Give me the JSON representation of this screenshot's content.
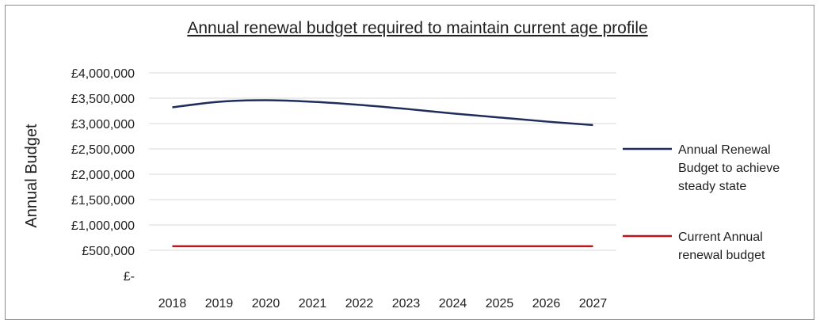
{
  "chart_data": {
    "type": "line",
    "title": "Annual renewal budget required to maintain current age profile",
    "xlabel": "",
    "ylabel": "Annual Budget",
    "x": [
      "2018",
      "2019",
      "2020",
      "2021",
      "2022",
      "2023",
      "2024",
      "2025",
      "2026",
      "2027"
    ],
    "ylim": [
      0,
      4000000
    ],
    "yticks": [
      0,
      500000,
      1000000,
      1500000,
      2000000,
      2500000,
      3000000,
      3500000,
      4000000
    ],
    "ytick_labels": [
      "£-",
      "£500,000",
      "£1,000,000",
      "£1,500,000",
      "£2,000,000",
      "£2,500,000",
      "£3,000,000",
      "£3,500,000",
      "£4,000,000"
    ],
    "grid": true,
    "legend_position": "right",
    "series": [
      {
        "name": "Annual Renewal Budget to achieve steady state",
        "legend_lines": [
          "Annual Renewal",
          "Budget to achieve",
          "steady state"
        ],
        "color": "#1f2d5c",
        "values": [
          3320000,
          3430000,
          3460000,
          3430000,
          3370000,
          3290000,
          3200000,
          3120000,
          3040000,
          2970000
        ]
      },
      {
        "name": "Current Annual renewal budget",
        "legend_lines": [
          "Current Annual",
          "renewal budget"
        ],
        "color": "#c0141b",
        "values": [
          580000,
          580000,
          580000,
          580000,
          580000,
          580000,
          580000,
          580000,
          580000,
          580000
        ]
      }
    ]
  }
}
